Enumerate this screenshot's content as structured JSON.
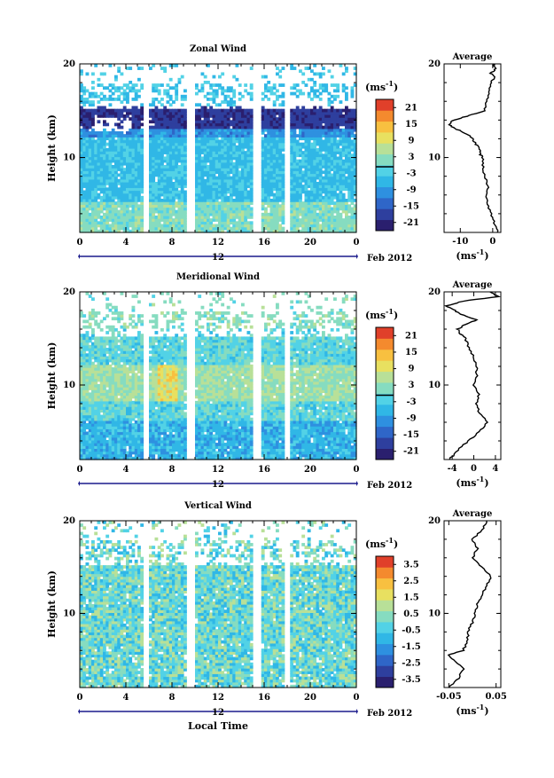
{
  "chart_data": [
    {
      "type": "heatmap",
      "title": "Zonal Wind",
      "ylabel": "Height (km)",
      "ylim": [
        2,
        20
      ],
      "yticks": [
        "10",
        "20"
      ],
      "xticks": [
        "0",
        "4",
        "8",
        "12",
        "16",
        "20",
        "0"
      ],
      "date_label": "12",
      "date_suffix": "Feb 2012",
      "colorbar": {
        "unit": "(ms",
        "unit_exp": "-1",
        "unit_close": ")",
        "ticks": [
          "21",
          "15",
          "9",
          "3",
          "-3",
          "-9",
          "-15",
          "-21"
        ],
        "range": [
          -24,
          24
        ]
      },
      "missing_time_bands": [
        [
          5.3,
          6.0
        ],
        [
          9.2,
          9.8
        ],
        [
          15.0,
          15.6
        ],
        [
          17.6,
          18.2
        ]
      ],
      "average_profile": {
        "title": "Average",
        "xlabel": "(ms",
        "xlabel_exp": "-1",
        "xlabel_close": ")",
        "xticks": [
          "-10",
          "0"
        ],
        "xlim": [
          -15,
          2.5
        ],
        "heights": [
          2,
          3,
          4,
          5,
          6,
          7,
          8,
          9,
          10,
          10.5,
          11,
          11.5,
          12,
          12.5,
          13,
          13.5,
          14,
          14.5,
          15,
          16,
          17,
          18,
          18.5,
          19,
          19.5,
          20
        ],
        "values": [
          1.5,
          0.5,
          -0.5,
          -1.5,
          -2.0,
          -1.5,
          -2.5,
          -3.0,
          -3.2,
          -4.0,
          -4.0,
          -5.5,
          -6.0,
          -8.0,
          -11.0,
          -13.5,
          -12.0,
          -7.0,
          -2.5,
          -2.0,
          -1.0,
          -0.5,
          0.5,
          -0.5,
          1.0,
          0.0
        ]
      }
    },
    {
      "type": "heatmap",
      "title": "Meridional Wind",
      "ylabel": "Height (km)",
      "ylim": [
        2,
        20
      ],
      "yticks": [
        "10",
        "20"
      ],
      "xticks": [
        "0",
        "4",
        "8",
        "12",
        "16",
        "20",
        "0"
      ],
      "date_label": "12",
      "date_suffix": "Feb 2012",
      "colorbar": {
        "unit": "(ms",
        "unit_exp": "-1",
        "unit_close": ")",
        "ticks": [
          "21",
          "15",
          "9",
          "3",
          "-3",
          "-9",
          "-15",
          "-21"
        ],
        "range": [
          -24,
          24
        ]
      },
      "missing_time_bands": [
        [
          5.3,
          6.0
        ],
        [
          9.2,
          9.8
        ],
        [
          15.0,
          15.6
        ],
        [
          17.6,
          18.2
        ]
      ],
      "average_profile": {
        "title": "Average",
        "xlabel": "(ms",
        "xlabel_exp": "-1",
        "xlabel_close": ")",
        "xticks": [
          "-4",
          "0",
          "4"
        ],
        "xlim": [
          -5.5,
          5
        ],
        "heights": [
          2,
          3,
          4,
          5,
          6,
          7,
          8,
          9,
          10,
          11,
          12,
          13,
          14,
          15,
          15.5,
          16,
          16.5,
          17,
          17.5,
          18,
          18.5,
          19,
          19.5,
          20
        ],
        "values": [
          -4.5,
          -3.0,
          -1.0,
          1.0,
          2.5,
          1.0,
          0.5,
          1.0,
          0.0,
          0.5,
          0.5,
          0.0,
          -1.0,
          -1.5,
          -2.5,
          -3.0,
          -1.5,
          0.5,
          -2.0,
          -3.5,
          -5.0,
          -2.0,
          4.5,
          3.0
        ]
      }
    },
    {
      "type": "heatmap",
      "title": "Vertical Wind",
      "ylabel": "Height (km)",
      "ylim": [
        2,
        20
      ],
      "yticks": [
        "10",
        "20"
      ],
      "xticks": [
        "0",
        "4",
        "8",
        "12",
        "16",
        "20",
        "0"
      ],
      "date_label": "12",
      "date_suffix": "Feb 2012",
      "xlabel": "Local Time",
      "colorbar": {
        "unit": "(ms",
        "unit_exp": "-1",
        "unit_close": ")",
        "ticks": [
          "3.5",
          "2.5",
          "1.5",
          "0.5",
          "-0.5",
          "-1.5",
          "-2.5",
          "-3.5"
        ],
        "range": [
          -4,
          4
        ]
      },
      "missing_time_bands": [
        [
          5.3,
          6.0
        ],
        [
          9.2,
          9.8
        ],
        [
          15.0,
          15.6
        ],
        [
          17.6,
          18.2
        ]
      ],
      "average_profile": {
        "title": "Average",
        "xlabel": "(ms",
        "xlabel_exp": "-1",
        "xlabel_close": ")",
        "xticks": [
          "-0.05",
          "0.05"
        ],
        "xlim": [
          -0.06,
          0.06
        ],
        "heights": [
          2,
          3,
          4,
          5,
          5.5,
          6,
          7,
          8,
          9,
          10,
          11,
          12,
          13,
          14,
          15,
          16,
          17,
          18,
          19,
          20
        ],
        "values": [
          -0.05,
          -0.03,
          -0.02,
          -0.04,
          -0.05,
          -0.02,
          -0.01,
          -0.01,
          0.0,
          0.005,
          0.01,
          0.02,
          0.03,
          0.04,
          0.02,
          0.0,
          0.01,
          0.0,
          0.02,
          0.03
        ]
      }
    }
  ]
}
